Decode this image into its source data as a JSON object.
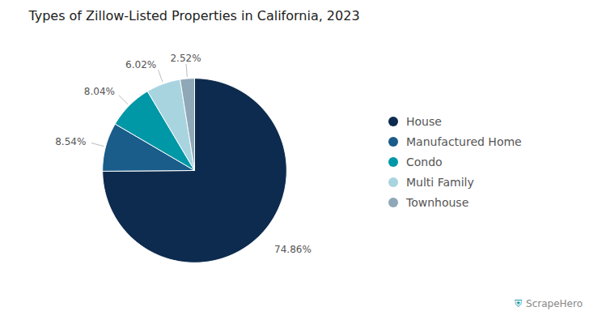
{
  "chart_data": {
    "type": "pie",
    "title": "Types of Zillow-Listed Properties in California, 2023",
    "categories": [
      "House",
      "Manufactured Home",
      "Condo",
      "Multi Family",
      "Townhouse"
    ],
    "values": [
      74.86,
      8.54,
      8.04,
      6.02,
      2.52
    ],
    "value_labels": [
      "74.86%",
      "8.54%",
      "8.04%",
      "6.02%",
      "2.52%"
    ],
    "colors": [
      "#0d2b4e",
      "#1a5c8a",
      "#0098a6",
      "#a8d4e0",
      "#8fa8b8"
    ],
    "data_labels": true,
    "legend": "right",
    "annotations": [
      {
        "text": "⛨",
        "color": "#2196a8"
      },
      {
        "text": "ScrapeHero"
      }
    ]
  }
}
